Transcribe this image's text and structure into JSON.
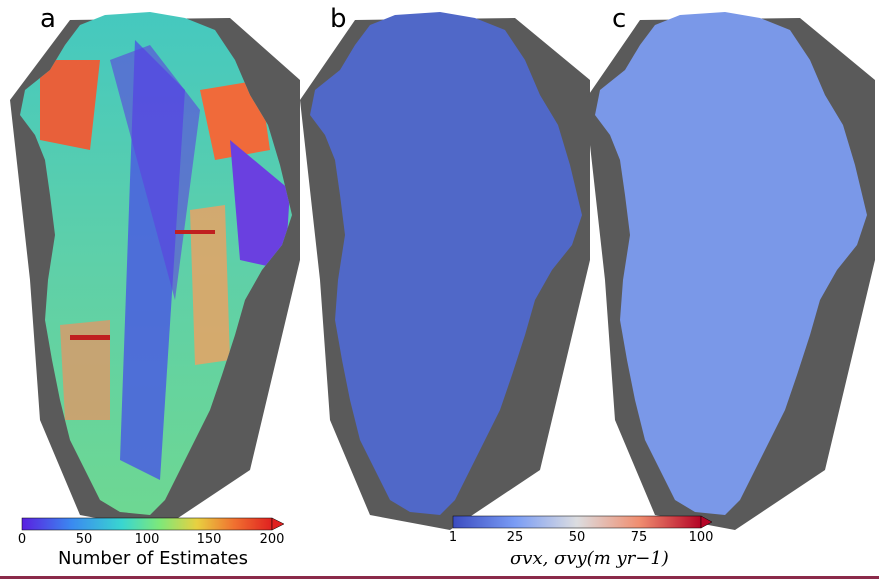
{
  "panels": [
    {
      "letter": "a"
    },
    {
      "letter": "b"
    },
    {
      "letter": "c"
    }
  ],
  "colorbar_count": {
    "ticks": [
      "0",
      "50",
      "100",
      "150",
      "200"
    ],
    "label": "Number of Estimates",
    "colors": [
      "#5a1fe0",
      "#3a8af0",
      "#39d6d0",
      "#7de87a",
      "#e8d040",
      "#f07030",
      "#e02020"
    ]
  },
  "colorbar_error": {
    "ticks": [
      "1",
      "25",
      "50",
      "75",
      "100"
    ],
    "label": "σvx, σvy(m yr−1)",
    "colors": [
      "#3b4cc0",
      "#7a9cf5",
      "#c7d7f0",
      "#f1c4b0",
      "#e08070",
      "#b40426"
    ]
  }
}
